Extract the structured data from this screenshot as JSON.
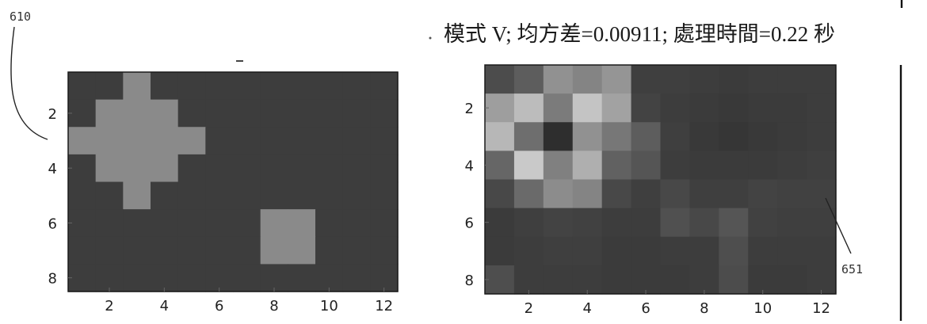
{
  "labels": {
    "figure_ref": "610",
    "plot_ref": "651"
  },
  "title": "模式 V; 均方差=0.00911; 處理時間=0.22 秒",
  "colors": {
    "background": "#2f2f2f",
    "frame": "#1a1a1a",
    "foreground": "#9a9a9a"
  },
  "chart_data": [
    {
      "type": "heatmap",
      "title": "",
      "xlabel": "",
      "ylabel": "",
      "xlim": [
        0.5,
        12.5
      ],
      "ylim": [
        0.5,
        8.5
      ],
      "xticks": [
        "2",
        "4",
        "6",
        "8",
        "10",
        "12"
      ],
      "yticks": [
        "2",
        "4",
        "6",
        "8"
      ],
      "grid": false,
      "matrix": [
        [
          0.19,
          0.19,
          0.55,
          0.19,
          0.19,
          0.19,
          0.19,
          0.19,
          0.19,
          0.19,
          0.19,
          0.19
        ],
        [
          0.19,
          0.55,
          0.55,
          0.55,
          0.19,
          0.19,
          0.19,
          0.19,
          0.19,
          0.19,
          0.19,
          0.19
        ],
        [
          0.55,
          0.55,
          0.55,
          0.55,
          0.55,
          0.19,
          0.19,
          0.19,
          0.19,
          0.19,
          0.19,
          0.19
        ],
        [
          0.19,
          0.55,
          0.55,
          0.55,
          0.19,
          0.19,
          0.19,
          0.19,
          0.19,
          0.19,
          0.19,
          0.19
        ],
        [
          0.19,
          0.19,
          0.55,
          0.19,
          0.19,
          0.19,
          0.19,
          0.19,
          0.19,
          0.19,
          0.19,
          0.19
        ],
        [
          0.19,
          0.19,
          0.19,
          0.19,
          0.19,
          0.19,
          0.19,
          0.55,
          0.55,
          0.19,
          0.19,
          0.19
        ],
        [
          0.19,
          0.19,
          0.19,
          0.19,
          0.19,
          0.19,
          0.19,
          0.55,
          0.55,
          0.19,
          0.19,
          0.19
        ],
        [
          0.19,
          0.19,
          0.19,
          0.19,
          0.19,
          0.19,
          0.19,
          0.19,
          0.19,
          0.19,
          0.19,
          0.19
        ]
      ]
    },
    {
      "type": "heatmap",
      "title": "模式 V; 均方差=0.00911; 處理時間=0.22 秒",
      "xlabel": "",
      "ylabel": "",
      "xlim": [
        0.5,
        12.5
      ],
      "ylim": [
        0.5,
        8.5
      ],
      "xticks": [
        "2",
        "4",
        "6",
        "8",
        "10",
        "12"
      ],
      "yticks": [
        "2",
        "4",
        "6",
        "8"
      ],
      "grid": false,
      "matrix": [
        [
          0.26,
          0.34,
          0.58,
          0.52,
          0.6,
          0.2,
          0.2,
          0.19,
          0.18,
          0.19,
          0.19,
          0.19
        ],
        [
          0.64,
          0.78,
          0.48,
          0.82,
          0.66,
          0.22,
          0.19,
          0.18,
          0.17,
          0.18,
          0.18,
          0.19
        ],
        [
          0.76,
          0.42,
          0.12,
          0.58,
          0.46,
          0.34,
          0.2,
          0.17,
          0.16,
          0.17,
          0.18,
          0.19
        ],
        [
          0.38,
          0.84,
          0.5,
          0.72,
          0.36,
          0.3,
          0.19,
          0.18,
          0.18,
          0.18,
          0.19,
          0.2
        ],
        [
          0.24,
          0.4,
          0.56,
          0.52,
          0.24,
          0.2,
          0.24,
          0.2,
          0.2,
          0.22,
          0.21,
          0.21
        ],
        [
          0.18,
          0.2,
          0.22,
          0.21,
          0.19,
          0.19,
          0.28,
          0.24,
          0.3,
          0.21,
          0.2,
          0.2
        ],
        [
          0.18,
          0.19,
          0.2,
          0.2,
          0.18,
          0.18,
          0.19,
          0.19,
          0.27,
          0.19,
          0.19,
          0.19
        ],
        [
          0.27,
          0.19,
          0.19,
          0.19,
          0.18,
          0.18,
          0.18,
          0.19,
          0.26,
          0.18,
          0.18,
          0.19
        ]
      ]
    }
  ]
}
